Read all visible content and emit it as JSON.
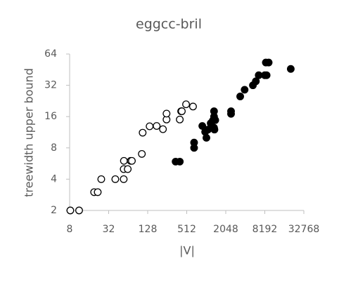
{
  "chart_data": {
    "type": "scatter",
    "title": "eggcc-bril",
    "x_label": "|V|",
    "y_label": "treewidth upper bound",
    "xscale": "log2",
    "yscale": "log2",
    "xlim": [
      8,
      32768
    ],
    "ylim": [
      2,
      64
    ],
    "xticks": [
      8,
      32,
      128,
      512,
      2048,
      8192,
      32768
    ],
    "yticks": [
      2,
      4,
      8,
      16,
      32,
      64
    ],
    "grid": false,
    "series": [
      {
        "color": "#000000",
        "filled": false,
        "x": [
          8.2,
          11.2,
          19.1,
          21.7,
          24.6,
          40.5,
          54.6,
          54.6,
          63,
          55,
          70,
          73,
          104,
          107,
          137,
          176,
          220,
          250,
          250,
          400,
          420,
          430,
          500,
          640
        ],
        "values": [
          2,
          2,
          3,
          3,
          4,
          4,
          4,
          5,
          5,
          6,
          6,
          6,
          7,
          11.2,
          12.9,
          13,
          12.1,
          15,
          17.1,
          15,
          18,
          18,
          21,
          20
        ]
      },
      {
        "color": "#000000",
        "filled": true,
        "x": [
          345,
          400,
          665,
          665,
          890,
          985,
          1030,
          1090,
          1200,
          1350,
          1350,
          1290,
          1350,
          1410,
          1370,
          2470,
          2470,
          3420,
          4000,
          5370,
          5960,
          6600,
          8190,
          8740,
          8500,
          9400,
          20600
        ],
        "values": [
          5.9,
          5.9,
          8,
          9,
          13,
          11.4,
          10,
          12,
          13.8,
          16,
          12.5,
          14.6,
          18,
          14.8,
          12,
          18,
          17,
          25,
          29,
          32,
          35,
          40,
          40,
          40,
          53,
          53,
          46
        ]
      }
    ]
  }
}
